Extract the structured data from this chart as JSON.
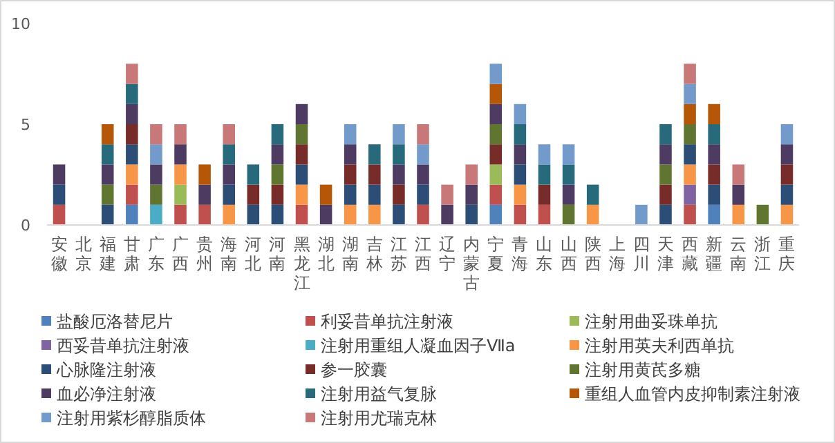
{
  "chart_data": {
    "type": "bar",
    "stacked": true,
    "ylim": [
      0,
      10
    ],
    "yticks": [
      0,
      5,
      10
    ],
    "grid": false,
    "legend": "bottom",
    "categories": [
      "安徽",
      "北京",
      "福建",
      "甘肃",
      "广东",
      "广西",
      "贵州",
      "海南",
      "河北",
      "河南",
      "黑龙江",
      "湖北",
      "湖南",
      "吉林",
      "江苏",
      "江西",
      "辽宁",
      "内蒙古",
      "宁夏",
      "青海",
      "山东",
      "山西",
      "陕西",
      "上海",
      "四川",
      "天津",
      "西藏",
      "新疆",
      "云南",
      "浙江",
      "重庆"
    ],
    "series": [
      {
        "name": "盐酸厄洛替尼片",
        "color": "#4f81bd",
        "values": [
          0,
          0,
          0,
          1,
          0,
          0,
          0,
          0,
          0,
          0,
          0,
          0,
          0,
          0,
          0,
          0,
          0,
          0,
          1,
          0,
          0,
          0,
          0,
          0,
          0,
          0,
          0,
          1,
          0,
          0,
          0
        ]
      },
      {
        "name": "利妥昔单抗注射液",
        "color": "#c0504d",
        "values": [
          1,
          0,
          0,
          1,
          0,
          1,
          1,
          0,
          0,
          0,
          1,
          0,
          0,
          0,
          0,
          1,
          0,
          0,
          1,
          1,
          1,
          0,
          0,
          0,
          0,
          0,
          1,
          0,
          0,
          0,
          0
        ]
      },
      {
        "name": "注射用曲妥珠单抗",
        "color": "#9bbb59",
        "values": [
          0,
          0,
          0,
          0,
          0,
          1,
          0,
          0,
          0,
          0,
          0,
          0,
          0,
          0,
          0,
          0,
          0,
          0,
          1,
          0,
          0,
          0,
          0,
          0,
          0,
          0,
          0,
          0,
          0,
          0,
          0
        ]
      },
      {
        "name": "西妥昔单抗注射液",
        "color": "#8064a2",
        "values": [
          0,
          0,
          0,
          0,
          0,
          0,
          0,
          0,
          0,
          0,
          0,
          0,
          0,
          0,
          0,
          0,
          0,
          0,
          0,
          0,
          0,
          0,
          0,
          0,
          0,
          0,
          1,
          0,
          0,
          0,
          0
        ]
      },
      {
        "name": "注射用重组人凝血因子Ⅶa",
        "color": "#4bacc6",
        "values": [
          0,
          0,
          0,
          0,
          1,
          0,
          0,
          0,
          0,
          0,
          0,
          0,
          0,
          0,
          0,
          0,
          0,
          0,
          0,
          0,
          0,
          0,
          0,
          0,
          0,
          0,
          0,
          0,
          0,
          0,
          0
        ]
      },
      {
        "name": "注射用英夫利西单抗",
        "color": "#f79646",
        "values": [
          0,
          0,
          0,
          1,
          0,
          1,
          0,
          1,
          0,
          0,
          1,
          0,
          1,
          1,
          0,
          0,
          0,
          0,
          0,
          1,
          0,
          0,
          1,
          0,
          0,
          0,
          1,
          0,
          1,
          0,
          1
        ]
      },
      {
        "name": "心脉隆注射液",
        "color": "#2c4d75",
        "values": [
          1,
          0,
          1,
          1,
          0,
          0,
          0,
          1,
          1,
          1,
          1,
          0,
          1,
          1,
          1,
          1,
          0,
          1,
          0,
          1,
          0,
          0,
          0,
          0,
          0,
          1,
          1,
          1,
          0,
          0,
          1
        ]
      },
      {
        "name": "参一胶囊",
        "color": "#772c2a",
        "values": [
          0,
          0,
          0,
          1,
          0,
          0,
          0,
          0,
          1,
          1,
          1,
          0,
          1,
          1,
          1,
          0,
          0,
          0,
          1,
          0,
          1,
          0,
          0,
          0,
          0,
          1,
          0,
          1,
          0,
          0,
          1
        ]
      },
      {
        "name": "注射用黄芪多糖",
        "color": "#5f7530",
        "values": [
          0,
          0,
          1,
          0,
          1,
          0,
          0,
          0,
          0,
          1,
          1,
          0,
          0,
          0,
          0,
          0,
          0,
          0,
          1,
          0,
          0,
          1,
          0,
          0,
          0,
          1,
          1,
          0,
          0,
          1,
          0
        ]
      },
      {
        "name": "血必净注射液",
        "color": "#4d3b62",
        "values": [
          1,
          0,
          1,
          1,
          1,
          1,
          1,
          1,
          0,
          1,
          1,
          1,
          1,
          0,
          1,
          1,
          1,
          1,
          1,
          1,
          0,
          1,
          0,
          0,
          0,
          1,
          0,
          1,
          1,
          0,
          1
        ]
      },
      {
        "name": "注射用益气复脉",
        "color": "#276a7c",
        "values": [
          0,
          0,
          1,
          1,
          0,
          0,
          0,
          1,
          1,
          1,
          0,
          0,
          0,
          1,
          1,
          0,
          0,
          0,
          0,
          1,
          1,
          1,
          1,
          0,
          0,
          1,
          0,
          1,
          0,
          0,
          0
        ]
      },
      {
        "name": "重组人血管内皮抑制素注射液",
        "color": "#b65708",
        "values": [
          0,
          0,
          1,
          0,
          0,
          0,
          1,
          0,
          0,
          0,
          0,
          1,
          0,
          0,
          0,
          0,
          0,
          0,
          1,
          0,
          0,
          0,
          0,
          0,
          0,
          0,
          1,
          1,
          0,
          0,
          0
        ]
      },
      {
        "name": "注射用紫杉醇脂质体",
        "color": "#729aca",
        "values": [
          0,
          0,
          0,
          0,
          1,
          0,
          0,
          0,
          0,
          0,
          0,
          0,
          1,
          0,
          1,
          1,
          0,
          0,
          1,
          1,
          1,
          1,
          0,
          0,
          1,
          0,
          1,
          0,
          0,
          0,
          1
        ]
      },
      {
        "name": "注射用尤瑞克林",
        "color": "#c9787a",
        "values": [
          0,
          0,
          0,
          1,
          1,
          1,
          0,
          1,
          0,
          0,
          0,
          0,
          0,
          0,
          0,
          1,
          1,
          1,
          0,
          0,
          0,
          0,
          0,
          0,
          0,
          0,
          1,
          0,
          1,
          0,
          0
        ]
      }
    ]
  }
}
